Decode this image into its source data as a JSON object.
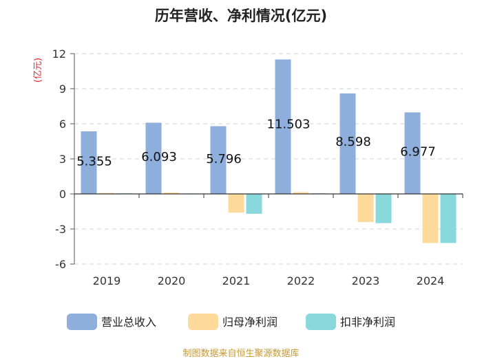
{
  "chart_data": {
    "type": "bar",
    "title": "历年营收、净利情况(亿元)",
    "ylabel": "(亿元)",
    "xlabel": "",
    "categories": [
      "2019",
      "2020",
      "2021",
      "2022",
      "2023",
      "2024"
    ],
    "ylim": [
      -6,
      12
    ],
    "yticks": [
      12,
      9,
      6,
      3,
      0,
      -3,
      -6
    ],
    "grid": true,
    "legend_position": "bottom",
    "series": [
      {
        "name": "营业总收入",
        "color": "#8eaedc",
        "values": [
          5.355,
          6.093,
          5.796,
          11.503,
          8.598,
          6.977
        ],
        "labels": [
          "5.355",
          "6.093",
          "5.796",
          "11.503",
          "8.598",
          "6.977"
        ]
      },
      {
        "name": "归母净利润",
        "color": "#fdd99a",
        "values": [
          0.08,
          0.12,
          -1.6,
          0.15,
          -2.4,
          -4.2
        ]
      },
      {
        "name": "扣非净利润",
        "color": "#89d8dc",
        "values": [
          0.05,
          0.02,
          -1.7,
          0.05,
          -2.5,
          -4.2
        ]
      }
    ]
  },
  "colors": {
    "ylabel": "#e0212a",
    "source": "#c9992a"
  },
  "source_text": "制图数据来自恒生聚源数据库"
}
